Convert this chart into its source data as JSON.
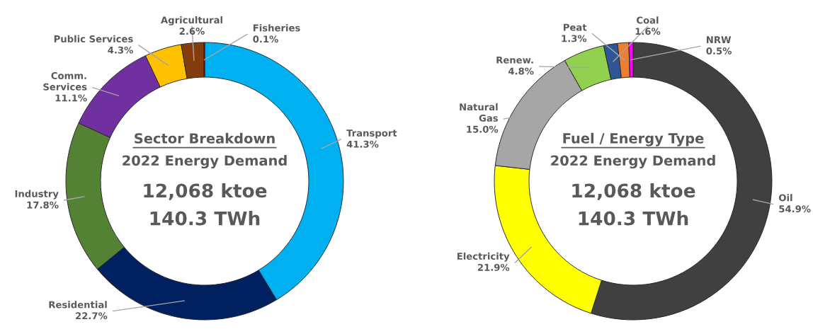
{
  "chart_data": [
    {
      "type": "donut",
      "title": "Sector Breakdown",
      "subtitle": "2022 Energy Demand",
      "annotations": [
        "12,068 ktoe",
        "140.3 TWh"
      ],
      "categories": [
        "Transport",
        "Residential",
        "Industry",
        "Comm. Services",
        "Public Services",
        "Agricultural",
        "Fisheries"
      ],
      "values": [
        41.3,
        22.7,
        17.8,
        11.1,
        4.3,
        2.6,
        0.1
      ],
      "value_labels": [
        "41.3%",
        "22.7%",
        "17.8%",
        "11.1%",
        "4.3%",
        "2.6%",
        "0.1%"
      ],
      "colors": [
        "#00b0f0",
        "#002060",
        "#548235",
        "#7030a0",
        "#ffc000",
        "#843c0c",
        "#c00000"
      ],
      "legend": false
    },
    {
      "type": "donut",
      "title": "Fuel / Energy Type",
      "subtitle": "2022 Energy Demand",
      "annotations": [
        "12,068 ktoe",
        "140.3 TWh"
      ],
      "categories": [
        "Oil",
        "Electricity",
        "Natural Gas",
        "Renew.",
        "Coal",
        "Peat",
        "NRW"
      ],
      "values": [
        54.9,
        21.9,
        15.0,
        4.8,
        1.6,
        1.3,
        0.5
      ],
      "value_labels": [
        "54.9%",
        "21.9%",
        "15.0%",
        "4.8%",
        "1.6%",
        "1.3%",
        "0.5%"
      ],
      "colors": [
        "#404040",
        "#ffff00",
        "#a6a6a6",
        "#92d050",
        "#2f5597",
        "#ed7d31",
        "#ff00ff"
      ],
      "legend": false
    }
  ]
}
